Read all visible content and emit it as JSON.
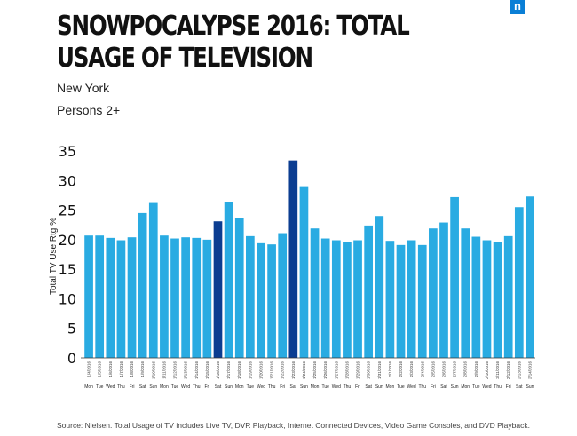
{
  "brand": {
    "logo_letter": "n",
    "logo_color": "#0a7fd6"
  },
  "header": {
    "title": "SNOWPOCALYPSE 2016: TOTAL USAGE OF TELEVISION",
    "market": "New York",
    "demo": "Persons 2+"
  },
  "source_note": "Source: Nielsen. Total Usage of TV includes Live TV, DVR Playback, Internet Connected Devices, Video Game Consoles, and DVD Playback.",
  "colors": {
    "normal": "#29abe2",
    "highlight": "#0b3d91"
  },
  "chart_data": {
    "type": "bar",
    "title": "SNOWPOCALYPSE 2016: TOTAL USAGE OF TELEVISION",
    "xlabel": "",
    "ylabel": "Total TV Use Rtg %",
    "ylim": [
      0,
      35
    ],
    "yticks": [
      0,
      5,
      10,
      15,
      20,
      25,
      30,
      35
    ],
    "grid": false,
    "categories": [
      "1/4/2016",
      "1/5/2016",
      "1/6/2016",
      "1/7/2016",
      "1/8/2016",
      "1/9/2016",
      "1/10/2016",
      "1/11/2016",
      "1/12/2016",
      "1/13/2016",
      "1/14/2016",
      "1/15/2016",
      "1/16/2016",
      "1/17/2016",
      "1/18/2016",
      "1/19/2016",
      "1/20/2016",
      "1/21/2016",
      "1/22/2016",
      "1/23/2016",
      "1/24/2016",
      "1/25/2016",
      "1/26/2016",
      "1/27/2016",
      "1/28/2016",
      "1/29/2016",
      "1/30/2016",
      "1/31/2016",
      "2/1/2016",
      "2/2/2016",
      "2/3/2016",
      "2/4/2016",
      "2/5/2016",
      "2/6/2016",
      "2/7/2016",
      "2/8/2016",
      "2/9/2016",
      "2/10/2016",
      "2/11/2016",
      "2/12/2016",
      "2/13/2016",
      "2/14/2016"
    ],
    "days": [
      "Mon",
      "Tue",
      "Wed",
      "Thu",
      "Fri",
      "Sat",
      "Sun",
      "Mon",
      "Tue",
      "Wed",
      "Thu",
      "Fri",
      "Sat",
      "Sun",
      "Mon",
      "Tue",
      "Wed",
      "Thu",
      "Fri",
      "Sat",
      "Sun",
      "Mon",
      "Tue",
      "Wed",
      "Thu",
      "Fri",
      "Sat",
      "Sun",
      "Mon",
      "Tue",
      "Wed",
      "Thu",
      "Fri",
      "Sat",
      "Sun",
      "Mon",
      "Tue",
      "Wed",
      "Thu",
      "Fri",
      "Sat",
      "Sun"
    ],
    "values": [
      20.7,
      20.7,
      20.3,
      19.9,
      20.4,
      24.5,
      26.2,
      20.7,
      20.2,
      20.4,
      20.3,
      20.0,
      23.1,
      26.4,
      23.6,
      20.6,
      19.4,
      19.2,
      21.1,
      33.4,
      28.9,
      21.9,
      20.2,
      19.9,
      19.6,
      19.9,
      22.4,
      24.0,
      19.8,
      19.1,
      19.9,
      19.1,
      21.9,
      22.9,
      27.2,
      21.9,
      20.5,
      19.9,
      19.6,
      20.6,
      25.5,
      27.3
    ],
    "highlight_indices": [
      12,
      19
    ]
  }
}
